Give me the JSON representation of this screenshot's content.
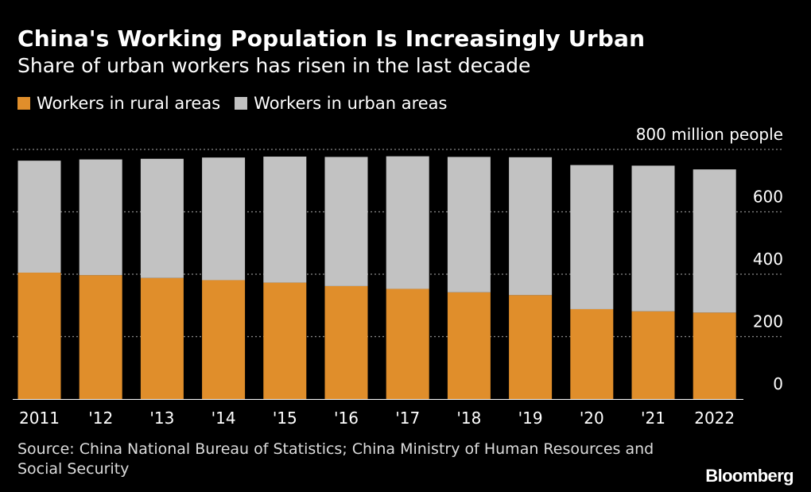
{
  "header": {
    "title": "China's Working Population Is Increasingly Urban",
    "subtitle": "Share of urban workers has risen in the last decade"
  },
  "legend": {
    "rural_label": "Workers in rural areas",
    "urban_label": "Workers in urban areas"
  },
  "colors": {
    "rural": "#e08e2b",
    "urban": "#c2c2c2",
    "background": "#000000",
    "grid": "#8a8a8a"
  },
  "chart_data": {
    "type": "bar",
    "stacked": true,
    "title": "China's Working Population Is Increasingly Urban",
    "subtitle": "Share of urban workers has risen in the last decade",
    "ylabel": "800 million people",
    "categories": [
      "2011",
      "'12",
      "'13",
      "'14",
      "'15",
      "'16",
      "'17",
      "'18",
      "'19",
      "'20",
      "'21",
      "2022"
    ],
    "series": [
      {
        "name": "Workers in rural areas",
        "values": [
          405,
          397,
          388,
          381,
          373,
          362,
          353,
          342,
          333,
          288,
          281,
          277
        ]
      },
      {
        "name": "Workers in urban areas",
        "values": [
          359,
          371,
          382,
          393,
          404,
          414,
          425,
          434,
          442,
          462,
          467,
          459
        ]
      }
    ],
    "ylim": [
      0,
      800
    ],
    "yticks": [
      "0",
      "200",
      "400",
      "600",
      "800 million people"
    ],
    "grid": true,
    "legend_position": "top-left"
  },
  "footer": {
    "source": "Source: China National Bureau of Statistics; China Ministry of Human Resources and Social Security",
    "brand": "Bloomberg"
  }
}
